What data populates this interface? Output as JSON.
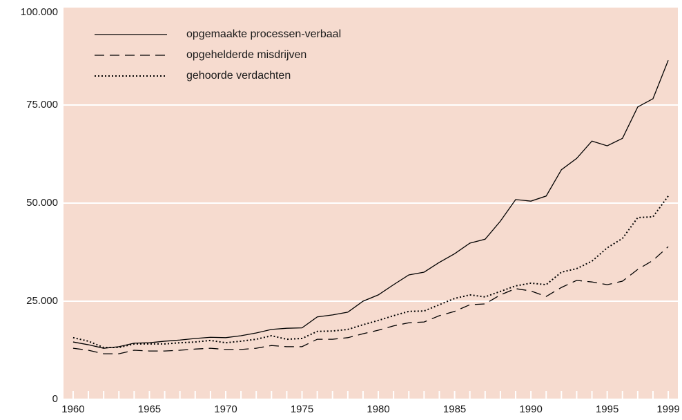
{
  "chart_data": {
    "type": "line",
    "x": [
      1960,
      1961,
      1962,
      1963,
      1964,
      1965,
      1966,
      1967,
      1968,
      1969,
      1970,
      1971,
      1972,
      1973,
      1974,
      1975,
      1976,
      1977,
      1978,
      1979,
      1980,
      1981,
      1982,
      1983,
      1984,
      1985,
      1986,
      1987,
      1988,
      1989,
      1990,
      1991,
      1992,
      1993,
      1994,
      1995,
      1996,
      1997,
      1998,
      1999
    ],
    "series": [
      {
        "name": "opgemaakte processen-verbaal",
        "color": "#000000",
        "line_style": "solid",
        "values": [
          14600,
          13900,
          13000,
          13400,
          14300,
          14400,
          14800,
          15100,
          15500,
          15800,
          15700,
          16200,
          16900,
          17800,
          18100,
          18200,
          21000,
          21500,
          22200,
          25000,
          26600,
          29200,
          31700,
          32400,
          34900,
          37100,
          39800,
          40800,
          45400,
          50900,
          50500,
          51800,
          58500,
          61400,
          65800,
          64600,
          66500,
          74500,
          76600,
          86400
        ]
      },
      {
        "name": "opgehelderde misdrijven",
        "color": "#000000",
        "line_style": "dashed",
        "values": [
          13000,
          12500,
          11600,
          11600,
          12500,
          12300,
          12300,
          12500,
          12800,
          13000,
          12700,
          12700,
          13000,
          13700,
          13400,
          13400,
          15300,
          15300,
          15700,
          16700,
          17600,
          18700,
          19500,
          19700,
          21300,
          22400,
          24100,
          24300,
          26600,
          28200,
          27600,
          26200,
          28500,
          30300,
          29900,
          29200,
          30100,
          33100,
          35400,
          38900
        ]
      },
      {
        "name": "gehoorde verdachten",
        "color": "#000000",
        "line_style": "dotted",
        "values": [
          15700,
          14800,
          13200,
          13200,
          14100,
          14100,
          14100,
          14400,
          14600,
          15000,
          14400,
          14800,
          15300,
          16200,
          15300,
          15500,
          17300,
          17400,
          17800,
          19000,
          20100,
          21300,
          22400,
          22500,
          24100,
          25700,
          26600,
          26100,
          27500,
          28900,
          29600,
          29200,
          32400,
          33300,
          35200,
          38600,
          41000,
          46300,
          46500,
          51800
        ]
      }
    ],
    "xlim": [
      1959.37,
      1999.63
    ],
    "xticks": [
      1960,
      1965,
      1970,
      1975,
      1980,
      1985,
      1990,
      1995,
      1999
    ],
    "ylim": [
      0,
      100000
    ],
    "yticks": [
      0,
      {
        "value": 25000,
        "label": "25.000"
      },
      {
        "value": 50000,
        "label": "50.000"
      },
      {
        "value": 75000,
        "label": "75.000"
      },
      {
        "value": 100000,
        "label": "100.000"
      }
    ],
    "grid": true,
    "legend": "top-left"
  }
}
